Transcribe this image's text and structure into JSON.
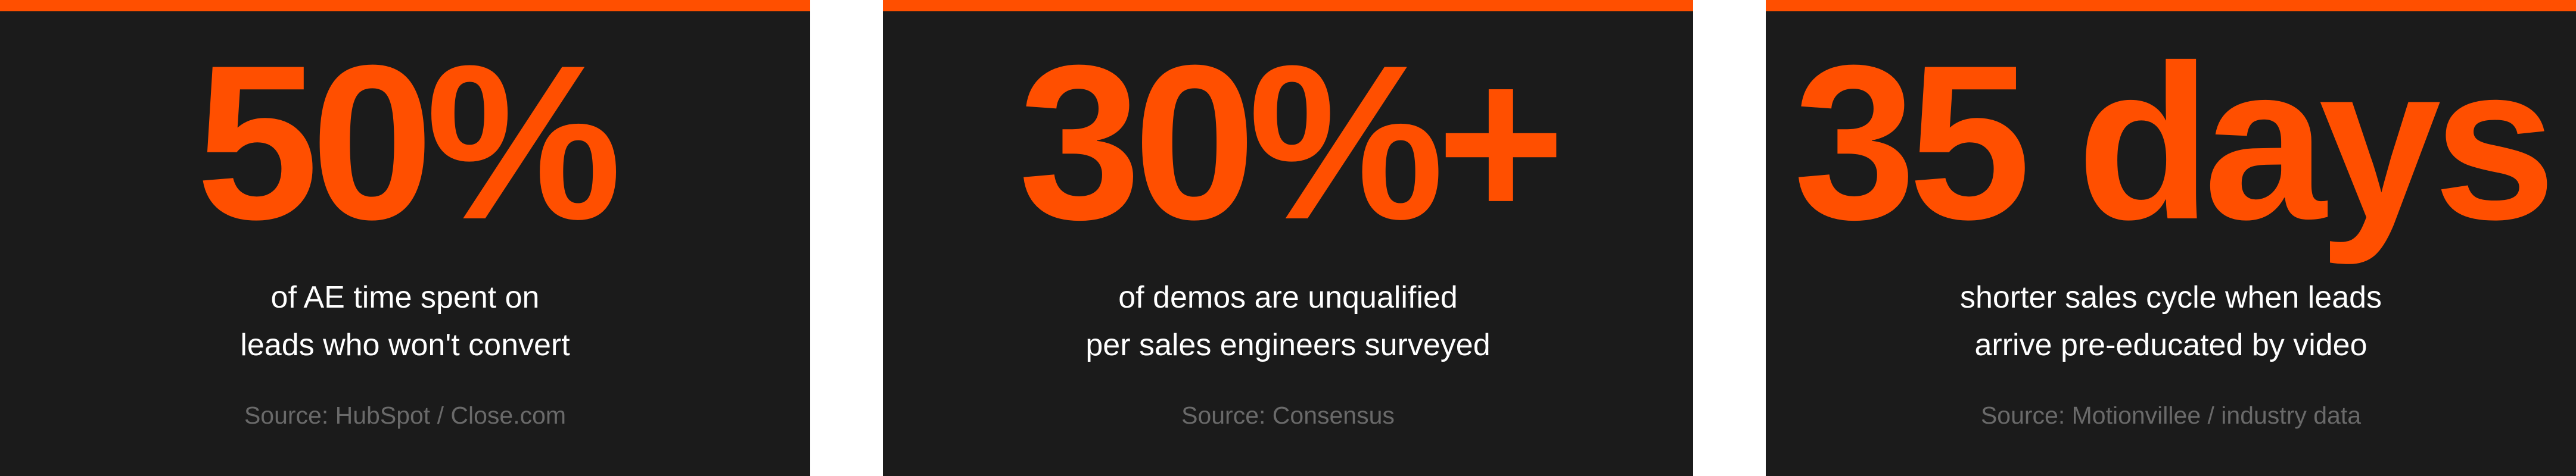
{
  "cards": [
    {
      "stat": "50%",
      "description": [
        "of AE time spent on",
        "leads who won't convert"
      ],
      "source": "Source: HubSpot / Close.com"
    },
    {
      "stat": "30%+",
      "description": [
        "of demos are unqualified",
        "per sales engineers surveyed"
      ],
      "source": "Source: Consensus"
    },
    {
      "stat": "35 days",
      "description": [
        "shorter sales cycle when leads",
        "arrive pre-educated by video"
      ],
      "source": "Source: Motionvillee / industry data"
    }
  ]
}
